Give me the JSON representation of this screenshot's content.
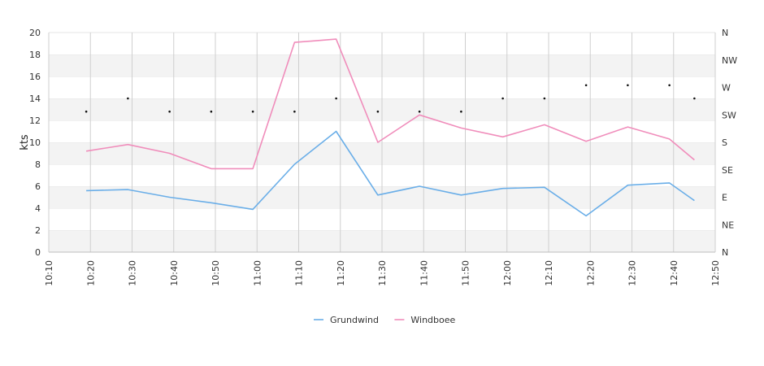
{
  "chart_data": {
    "type": "line",
    "ylabel": "kts",
    "ylim": [
      0,
      20
    ],
    "y_ticks": [
      0,
      2,
      4,
      6,
      8,
      10,
      12,
      14,
      16,
      18,
      20
    ],
    "x_range": [
      "10:10",
      "12:50"
    ],
    "x_ticks": [
      "10:10",
      "10:20",
      "10:30",
      "10:40",
      "10:50",
      "11:00",
      "11:10",
      "11:20",
      "11:30",
      "11:40",
      "11:50",
      "12:00",
      "12:10",
      "12:20",
      "12:30",
      "12:40",
      "12:50"
    ],
    "y2_ticks": [
      "N",
      "NE",
      "E",
      "SE",
      "S",
      "SW",
      "W",
      "NW",
      "N"
    ],
    "grid": "horizontal bands and vertical lines",
    "legend_position": "bottom-center",
    "x": [
      "10:19",
      "10:29",
      "10:39",
      "10:49",
      "10:59",
      "11:09",
      "11:19",
      "11:29",
      "11:39",
      "11:49",
      "11:59",
      "12:09",
      "12:19",
      "12:29",
      "12:39",
      "12:45"
    ],
    "series": [
      {
        "name": "Grundwind",
        "color": "#6aaee8",
        "values": [
          5.6,
          5.7,
          5.0,
          4.5,
          3.9,
          8.0,
          11.0,
          5.2,
          6.0,
          5.2,
          5.8,
          5.9,
          3.3,
          6.1,
          6.3,
          4.7
        ]
      },
      {
        "name": "Windboee",
        "color": "#f08dbb",
        "values": [
          9.2,
          9.8,
          9.0,
          7.6,
          7.6,
          19.1,
          19.4,
          10.0,
          12.5,
          11.3,
          10.5,
          11.6,
          10.1,
          11.4,
          10.3,
          8.4
        ]
      }
    ],
    "direction": {
      "markers": "dots",
      "values": [
        "SW",
        "SW",
        "SW",
        "SW",
        "SW",
        "SW",
        "SW",
        "SW",
        "SW",
        "SW",
        "SW",
        "SW",
        "W",
        "W",
        "W",
        "SW"
      ],
      "y_values": [
        12.8,
        14.0,
        12.8,
        12.8,
        12.8,
        12.8,
        14.0,
        12.8,
        12.8,
        12.8,
        14.0,
        14.0,
        15.2,
        15.2,
        15.2,
        14.0
      ]
    }
  }
}
